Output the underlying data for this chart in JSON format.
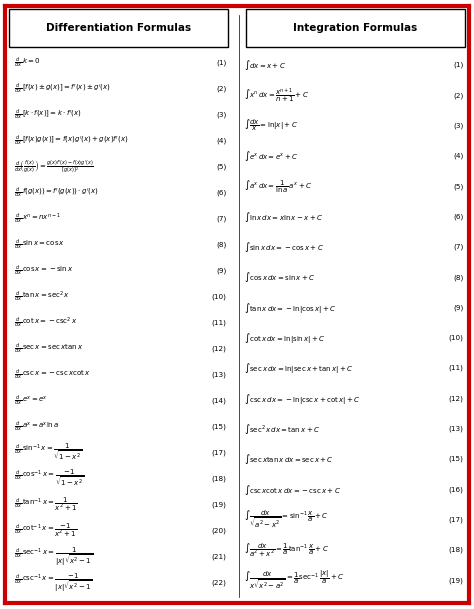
{
  "bg_color": "#ffffff",
  "border_color": "#cc0000",
  "diff_title": "Differentiation Formulas",
  "int_title": "Integration Formulas",
  "diff_formulas": [
    [
      "\\frac{d}{dx}\\,k = 0",
      "(1)"
    ],
    [
      "\\frac{d}{dx}\\,[f(x) \\pm g(x)] = f'(x) \\pm g'(x)",
      "(2)"
    ],
    [
      "\\frac{d}{dx}\\,[k \\cdot f(x)] = k \\cdot f'(x)",
      "(3)"
    ],
    [
      "\\frac{d}{dx}\\,[f(x)g(x)] = f(x)g'(x) + g(x)f'(x)",
      "(4)"
    ],
    [
      "\\frac{d}{dx}\\!\\left(\\frac{f(x)}{g(x)}\\right) = \\frac{g(x)f'(x)-f(x)g'(x)}{[g(x)]^2}",
      "(5)"
    ],
    [
      "\\frac{d}{dx}\\,f(g(x)) = f'(g(x)) \\cdot g'(x)",
      "(6)"
    ],
    [
      "\\frac{d}{dx}\\,x^n = nx^{n-1}",
      "(7)"
    ],
    [
      "\\frac{d}{dx}\\,\\sin x = \\cos x",
      "(8)"
    ],
    [
      "\\frac{d}{dx}\\,\\cos x = -\\sin x",
      "(9)"
    ],
    [
      "\\frac{d}{dx}\\,\\tan x = \\sec^2 x",
      "(10)"
    ],
    [
      "\\frac{d}{dx}\\,\\cot x = -\\csc^2 x",
      "(11)"
    ],
    [
      "\\frac{d}{dx}\\,\\sec x = \\sec x \\tan x",
      "(12)"
    ],
    [
      "\\frac{d}{dx}\\,\\csc x = -\\csc x \\cot x",
      "(13)"
    ],
    [
      "\\frac{d}{dx}\\,e^x = e^x",
      "(14)"
    ],
    [
      "\\frac{d}{dx}\\,a^x = a^x \\ln a",
      "(15)"
    ],
    [
      "\\frac{d}{dx}\\,\\sin^{-1} x = \\dfrac{1}{\\sqrt{1-x^2}}",
      "(17)"
    ],
    [
      "\\frac{d}{dx}\\,\\cos^{-1} x = \\dfrac{-1}{\\sqrt{1-x^2}}",
      "(18)"
    ],
    [
      "\\frac{d}{dx}\\,\\tan^{-1} x = \\dfrac{1}{x^2+1}",
      "(19)"
    ],
    [
      "\\frac{d}{dx}\\,\\cot^{-1} x = \\dfrac{-1}{x^2+1}",
      "(20)"
    ],
    [
      "\\frac{d}{dx}\\,\\sec^{-1} x = \\dfrac{1}{|x|\\sqrt{x^2-1}}",
      "(21)"
    ],
    [
      "\\frac{d}{dx}\\,\\csc^{-1} x = \\dfrac{-1}{|x|\\sqrt{x^2-1}}",
      "(22)"
    ]
  ],
  "int_formulas": [
    [
      "\\int dx = x + C",
      "(1)"
    ],
    [
      "\\int x^n\\,dx = \\dfrac{x^{n+1}}{n+1} + C",
      "(2)"
    ],
    [
      "\\int \\dfrac{dx}{x} = \\ln|x| + C",
      "(3)"
    ],
    [
      "\\int e^x\\,dx = e^x + C",
      "(4)"
    ],
    [
      "\\int a^x\\,dx = \\dfrac{1}{\\ln a}\\,a^x + C",
      "(5)"
    ],
    [
      "\\int \\ln x\\,dx = x\\ln x - x + C",
      "(6)"
    ],
    [
      "\\int \\sin x\\,dx = -\\cos x + C",
      "(7)"
    ],
    [
      "\\int \\cos x\\,dx = \\sin x + C",
      "(8)"
    ],
    [
      "\\int \\tan x\\,dx = -\\ln|\\cos x| + C",
      "(9)"
    ],
    [
      "\\int \\cot x\\,dx = \\ln|\\sin x| + C",
      "(10)"
    ],
    [
      "\\int \\sec x\\,dx = \\ln|\\sec x + \\tan x| + C",
      "(11)"
    ],
    [
      "\\int \\csc x\\,dx = -\\ln|\\csc x + \\cot x| + C",
      "(12)"
    ],
    [
      "\\int \\sec^2 x\\,dx = \\tan x + C",
      "(13)"
    ],
    [
      "\\int \\sec x \\tan x\\,dx = \\sec x + C",
      "(15)"
    ],
    [
      "\\int \\csc x \\cot x\\,dx = -\\csc x + C",
      "(16)"
    ],
    [
      "\\int \\dfrac{dx}{\\sqrt{a^2-x^2}} = \\sin^{-1}\\dfrac{x}{a} + C",
      "(17)"
    ],
    [
      "\\int \\dfrac{dx}{a^2+x^2} = \\dfrac{1}{a}\\tan^{-1}\\dfrac{x}{a} + C",
      "(18)"
    ],
    [
      "\\int \\dfrac{dx}{x\\sqrt{x^2-a^2}} = \\dfrac{1}{a}\\sec^{-1}\\dfrac{|x|}{a} + C",
      "(19)"
    ]
  ]
}
